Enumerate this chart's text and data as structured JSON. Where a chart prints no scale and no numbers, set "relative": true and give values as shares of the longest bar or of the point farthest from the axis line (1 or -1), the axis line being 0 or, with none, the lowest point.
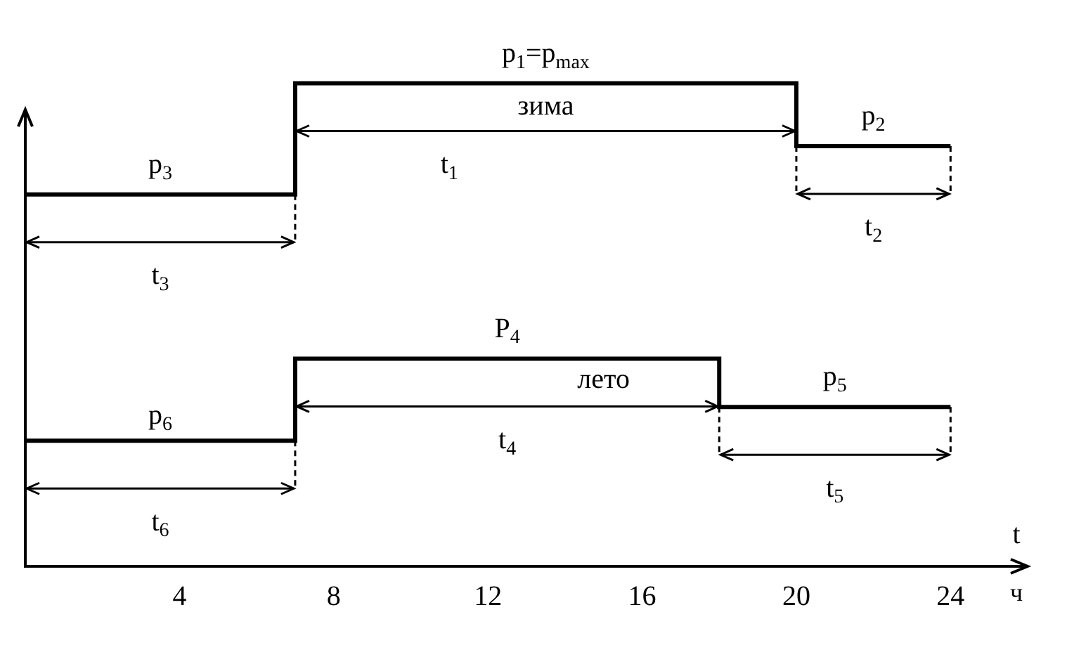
{
  "chart_data": {
    "type": "step",
    "relative": true,
    "xlim": [
      0,
      26
    ],
    "xticks": [
      4,
      8,
      12,
      16,
      20,
      24
    ],
    "xlabel": "t",
    "grid": false,
    "legend": false,
    "series": [
      {
        "color": "#000000",
        "x": [
          0,
          7,
          20,
          24
        ],
        "values": [
          0.77,
          1,
          0.87,
          0.87
        ]
      },
      {
        "color": "#000000",
        "x": [
          0,
          7,
          18,
          24
        ],
        "values": [
          0.26,
          0.43,
          0.33,
          0.33
        ]
      }
    ],
    "annotations": [
      "p$_{1}$=p$_{max}$",
      "зима",
      "t$_{1}$",
      "p$_{2}$",
      "t$_{2}$",
      "p$_{3}$",
      "t$_{3}$",
      "P$_{4}$",
      "лето",
      "t$_{4}$",
      "p$_{5}$",
      "t$_{5}$",
      "p$_{6}$",
      "t$_{6}$",
      "ч"
    ]
  }
}
